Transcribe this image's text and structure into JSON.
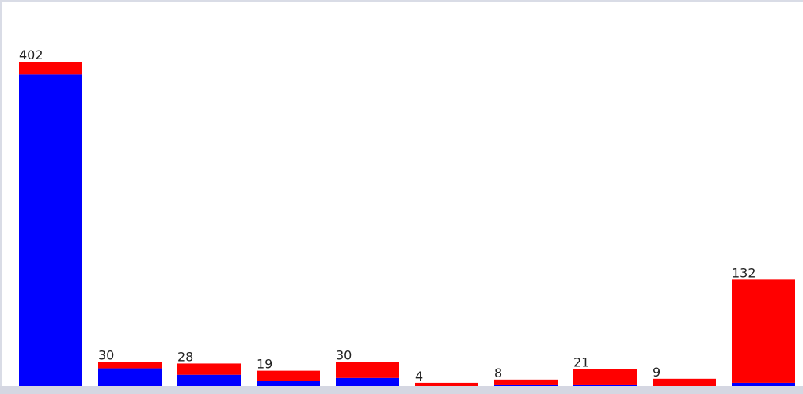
{
  "chart_data": {
    "type": "bar",
    "stacked": true,
    "title": "",
    "xlabel": "",
    "ylabel": "",
    "ylim": [
      0,
      402
    ],
    "legend": "none",
    "grid": false,
    "categories": [
      "",
      "",
      "",
      "",
      "",
      "",
      "",
      "",
      "",
      ""
    ],
    "totals": [
      402,
      30,
      28,
      19,
      30,
      4,
      8,
      21,
      9,
      132
    ],
    "series": [
      {
        "color": "#0000ff",
        "values": [
          386,
          22,
          14,
          6,
          10,
          0,
          2,
          2,
          0,
          4
        ]
      },
      {
        "color": "#ff0000",
        "values": [
          16,
          8,
          14,
          13,
          20,
          4,
          6,
          19,
          9,
          128
        ]
      }
    ]
  }
}
